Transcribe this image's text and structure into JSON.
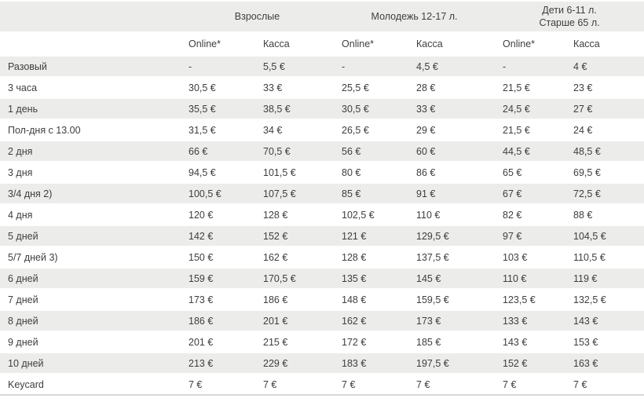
{
  "table": {
    "groups": [
      {
        "line1": "Взрослые",
        "line2": ""
      },
      {
        "line1": "Молодежь 12-17 л.",
        "line2": ""
      },
      {
        "line1": "Дети 6-11 л.",
        "line2": "Старше 65 л."
      }
    ],
    "subheaders": [
      "Online*",
      "Касса",
      "Online*",
      "Касса",
      "Online*",
      "Касса"
    ],
    "rows": [
      {
        "label": "Разовый",
        "values": [
          "-",
          "5,5 €",
          "-",
          "4,5 €",
          "-",
          "4 €"
        ]
      },
      {
        "label": "3 часа",
        "values": [
          "30,5 €",
          "33 €",
          "25,5 €",
          "28 €",
          "21,5 €",
          "23 €"
        ]
      },
      {
        "label": "1 день",
        "values": [
          "35,5 €",
          "38,5 €",
          "30,5 €",
          "33 €",
          "24,5 €",
          "27 €"
        ]
      },
      {
        "label": "Пол-дня с 13.00",
        "values": [
          "31,5 €",
          "34 €",
          "26,5 €",
          "29 €",
          "21,5 €",
          "24 €"
        ]
      },
      {
        "label": "2 дня",
        "values": [
          "66 €",
          "70,5 €",
          "56 €",
          "60 €",
          "44,5 €",
          "48,5 €"
        ]
      },
      {
        "label": "3 дня",
        "values": [
          "94,5 €",
          "101,5 €",
          "80 €",
          "86 €",
          "65 €",
          "69,5 €"
        ]
      },
      {
        "label": "3/4 дня 2)",
        "values": [
          "100,5 €",
          "107,5 €",
          "85 €",
          "91 €",
          "67 €",
          "72,5 €"
        ]
      },
      {
        "label": "4 дня",
        "values": [
          "120 €",
          "128 €",
          "102,5 €",
          "110 €",
          "82 €",
          "88 €"
        ]
      },
      {
        "label": "5 дней",
        "values": [
          "142 €",
          "152 €",
          "121 €",
          "129,5 €",
          "97 €",
          "104,5 €"
        ]
      },
      {
        "label": "5/7 дней 3)",
        "values": [
          "150 €",
          "162 €",
          "128 €",
          "137,5 €",
          "103 €",
          "110,5 €"
        ]
      },
      {
        "label": "6 дней",
        "values": [
          "159 €",
          "170,5 €",
          "135 €",
          "145 €",
          "110 €",
          "119 €"
        ]
      },
      {
        "label": "7 дней",
        "values": [
          "173 €",
          "186 €",
          "148 €",
          "159,5 €",
          "123,5 €",
          "132,5 €"
        ]
      },
      {
        "label": "8 дней",
        "values": [
          "186 €",
          "201 €",
          "162 €",
          "173 €",
          "133 €",
          "143 €"
        ]
      },
      {
        "label": "9 дней",
        "values": [
          "201 €",
          "215 €",
          "172 €",
          "185 €",
          "143 €",
          "153 €"
        ]
      },
      {
        "label": "10 дней",
        "values": [
          "213 €",
          "229 €",
          "183 €",
          "197,5 €",
          "152 €",
          "163 €"
        ]
      },
      {
        "label": "Keycard",
        "values": [
          "7 €",
          "7 €",
          "7 €",
          "7 €",
          "7 €",
          "7 €"
        ]
      }
    ],
    "colors": {
      "stripe": "#ececea",
      "text": "#3e3e3e",
      "bottom_rule": "#d8d8d6",
      "background": "#ffffff"
    }
  }
}
